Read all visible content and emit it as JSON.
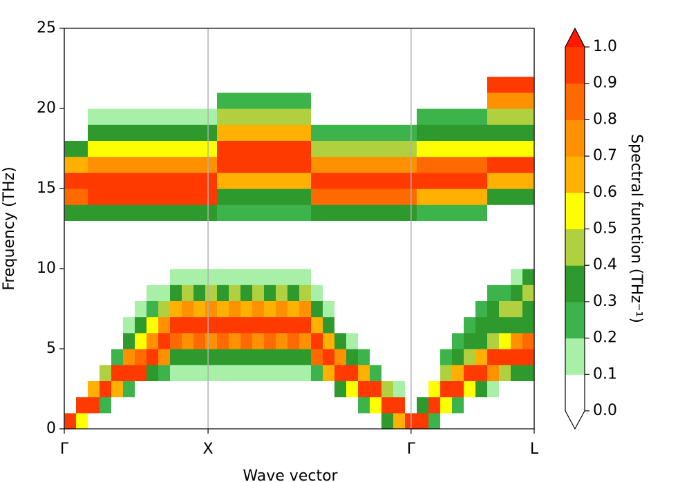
{
  "chart_data": {
    "type": "heatmap",
    "xlabel": "Wave vector",
    "ylabel": "Frequency (THz)",
    "xlim": [
      0,
      1
    ],
    "xticks": [
      {
        "value": 0,
        "label": "Γ"
      },
      {
        "value": 0.306,
        "label": "X"
      },
      {
        "value": 0.738,
        "label": "Γ"
      },
      {
        "value": 1,
        "label": "L"
      }
    ],
    "xgrid": true,
    "ylim": [
      0,
      25
    ],
    "yticks": [
      0,
      5,
      10,
      15,
      20,
      25
    ],
    "z": [
      [
        0.9,
        0,
        0,
        0,
        0,
        0,
        0,
        0,
        0,
        0,
        0,
        0,
        0,
        0.3,
        0.8,
        0.9,
        0.6,
        0.3,
        0,
        0,
        0,
        0,
        0,
        0,
        0
      ],
      [
        0.5,
        0.9,
        0,
        0,
        0,
        0,
        0,
        0,
        0,
        0,
        0,
        0,
        0,
        0.3,
        0.8,
        0.9,
        0.6,
        0.3,
        0,
        0,
        0,
        0,
        0,
        0,
        0
      ],
      [
        0,
        0.9,
        0.6,
        0,
        0,
        0,
        0,
        0,
        0,
        0,
        0,
        0,
        0,
        0.3,
        0.9,
        0.9,
        0.7,
        0.5,
        0.3,
        0.1,
        0,
        0,
        0,
        0,
        0
      ],
      [
        0,
        0.2,
        0.9,
        0.4,
        0,
        0,
        0,
        0,
        0,
        0,
        0,
        0,
        0,
        0.3,
        0.9,
        0.9,
        0.7,
        0.5,
        0.3,
        0.1,
        0,
        0,
        0,
        0,
        0
      ],
      [
        0,
        0,
        0.6,
        0.9,
        0.2,
        0,
        0,
        0,
        0,
        0,
        0,
        0,
        0,
        0.3,
        0.9,
        0.9,
        0.7,
        0.5,
        0.3,
        0.1,
        0,
        0,
        0,
        0,
        0
      ],
      [
        0,
        0,
        0.2,
        0.9,
        0.7,
        0.3,
        0.1,
        0,
        0,
        0,
        0,
        0,
        0,
        0.3,
        0.9,
        0.9,
        0.7,
        0.5,
        0.3,
        0.1,
        0,
        0,
        0,
        0,
        0
      ],
      [
        0,
        0,
        0,
        0.9,
        0.8,
        0.5,
        0.3,
        0.1,
        0,
        0,
        0,
        0,
        0,
        0.3,
        0.9,
        0.9,
        0.7,
        0.5,
        0.3,
        0.1,
        0,
        0,
        0,
        0,
        0
      ],
      [
        0,
        0,
        0,
        0.3,
        0.9,
        0.7,
        0.5,
        0.2,
        0.1,
        0,
        0,
        0,
        0,
        0.3,
        0.9,
        0.9,
        0.7,
        0.5,
        0.3,
        0.1,
        0,
        0,
        0,
        0,
        0
      ],
      [
        0,
        0,
        0,
        0.2,
        0.7,
        0.9,
        0.7,
        0.4,
        0.1,
        0,
        0,
        0,
        0,
        0.3,
        0.9,
        0.9,
        0.7,
        0.5,
        0.3,
        0.1,
        0,
        0,
        0,
        0,
        0
      ],
      [
        0,
        0,
        0,
        0.1,
        0.3,
        0.8,
        0.9,
        0.6,
        0.3,
        0.1,
        0,
        0,
        0,
        0.3,
        0.9,
        0.9,
        0.7,
        0.5,
        0.3,
        0.1,
        0,
        0,
        0,
        0,
        0
      ],
      [
        0,
        0,
        0,
        0.1,
        0.3,
        0.7,
        0.9,
        0.7,
        0.4,
        0.1,
        0,
        0,
        0,
        0.3,
        0.9,
        0.9,
        0.7,
        0.5,
        0.3,
        0.1,
        0,
        0,
        0,
        0,
        0
      ],
      [
        0,
        0,
        0,
        0.1,
        0.3,
        0.8,
        0.9,
        0.6,
        0.3,
        0.1,
        0,
        0,
        0,
        0.3,
        0.9,
        0.9,
        0.7,
        0.5,
        0.3,
        0.1,
        0,
        0,
        0,
        0,
        0
      ],
      [
        0,
        0,
        0,
        0.1,
        0.3,
        0.7,
        0.9,
        0.7,
        0.4,
        0.1,
        0,
        0,
        0,
        0.3,
        0.9,
        0.9,
        0.7,
        0.5,
        0.3,
        0.1,
        0,
        0,
        0,
        0,
        0
      ],
      [
        0,
        0,
        0,
        0.1,
        0.3,
        0.8,
        0.9,
        0.6,
        0.3,
        0.1,
        0,
        0,
        0,
        0.2,
        0.3,
        0.6,
        0.9,
        0.9,
        0.6,
        0.4,
        0.2,
        0,
        0,
        0,
        0
      ],
      [
        0,
        0,
        0,
        0.1,
        0.3,
        0.7,
        0.9,
        0.7,
        0.4,
        0.1,
        0,
        0,
        0,
        0.2,
        0.3,
        0.6,
        0.9,
        0.9,
        0.6,
        0.4,
        0.2,
        0,
        0,
        0,
        0
      ],
      [
        0,
        0,
        0,
        0.1,
        0.3,
        0.8,
        0.9,
        0.6,
        0.3,
        0.1,
        0,
        0,
        0,
        0.2,
        0.3,
        0.6,
        0.9,
        0.9,
        0.6,
        0.4,
        0.2,
        0,
        0,
        0,
        0
      ],
      [
        0,
        0,
        0,
        0.1,
        0.3,
        0.7,
        0.9,
        0.7,
        0.4,
        0.1,
        0,
        0,
        0,
        0.2,
        0.3,
        0.6,
        0.9,
        0.9,
        0.6,
        0.4,
        0.2,
        0,
        0,
        0,
        0
      ],
      [
        0,
        0,
        0,
        0.1,
        0.3,
        0.8,
        0.9,
        0.6,
        0.3,
        0.1,
        0,
        0,
        0,
        0.2,
        0.3,
        0.6,
        0.9,
        0.9,
        0.6,
        0.4,
        0.2,
        0,
        0,
        0,
        0
      ],
      [
        0,
        0,
        0,
        0.1,
        0.3,
        0.7,
        0.9,
        0.7,
        0.4,
        0.1,
        0,
        0,
        0,
        0.2,
        0.3,
        0.6,
        0.9,
        0.9,
        0.6,
        0.4,
        0.2,
        0,
        0,
        0,
        0
      ],
      [
        0,
        0,
        0,
        0.1,
        0.3,
        0.8,
        0.9,
        0.6,
        0.3,
        0.1,
        0,
        0,
        0,
        0.2,
        0.3,
        0.6,
        0.9,
        0.9,
        0.6,
        0.4,
        0.2,
        0,
        0,
        0,
        0
      ],
      [
        0,
        0,
        0,
        0.1,
        0.3,
        0.7,
        0.9,
        0.7,
        0.4,
        0.1,
        0,
        0,
        0,
        0.2,
        0.3,
        0.6,
        0.9,
        0.9,
        0.6,
        0.4,
        0.2,
        0,
        0,
        0,
        0
      ],
      [
        0,
        0,
        0,
        0.2,
        0.8,
        0.9,
        0.6,
        0.3,
        0.1,
        0,
        0,
        0,
        0,
        0.3,
        0.8,
        0.9,
        0.7,
        0.4,
        0.2,
        0,
        0,
        0,
        0,
        0,
        0
      ],
      [
        0,
        0,
        0,
        0.6,
        0.9,
        0.6,
        0.3,
        0.1,
        0,
        0,
        0,
        0,
        0,
        0.3,
        0.8,
        0.9,
        0.7,
        0.4,
        0.2,
        0,
        0,
        0,
        0,
        0,
        0
      ],
      [
        0,
        0,
        0.3,
        0.9,
        0.7,
        0.3,
        0,
        0,
        0,
        0,
        0,
        0,
        0,
        0.3,
        0.8,
        0.9,
        0.7,
        0.4,
        0.2,
        0,
        0,
        0,
        0,
        0,
        0
      ],
      [
        0,
        0,
        0.5,
        0.9,
        0.3,
        0.1,
        0,
        0,
        0,
        0,
        0,
        0,
        0,
        0.3,
        0.8,
        0.9,
        0.7,
        0.4,
        0.2,
        0,
        0,
        0,
        0,
        0,
        0
      ],
      [
        0,
        0.2,
        0.9,
        0.6,
        0.2,
        0,
        0,
        0,
        0,
        0,
        0,
        0,
        0,
        0.3,
        0.8,
        0.9,
        0.7,
        0.4,
        0.2,
        0,
        0,
        0,
        0,
        0,
        0
      ],
      [
        0,
        0.5,
        0.9,
        0.2,
        0,
        0,
        0,
        0,
        0,
        0,
        0,
        0,
        0,
        0.3,
        0.8,
        0.9,
        0.7,
        0.4,
        0.2,
        0,
        0,
        0,
        0,
        0,
        0
      ],
      [
        0.3,
        0.9,
        0.4,
        0,
        0,
        0,
        0,
        0,
        0,
        0,
        0,
        0,
        0,
        0.3,
        0.8,
        0.9,
        0.7,
        0.4,
        0.2,
        0,
        0,
        0,
        0,
        0,
        0
      ],
      [
        0.6,
        0.9,
        0.1,
        0,
        0,
        0,
        0,
        0,
        0,
        0,
        0,
        0,
        0,
        0.3,
        0.8,
        0.9,
        0.7,
        0.4,
        0.2,
        0,
        0,
        0,
        0,
        0,
        0
      ],
      [
        0.9,
        0,
        0,
        0,
        0,
        0,
        0,
        0,
        0,
        0,
        0,
        0,
        0,
        0.3,
        0.8,
        0.9,
        0.7,
        0.4,
        0.2,
        0,
        0,
        0,
        0,
        0,
        0
      ],
      [
        0.9,
        0.3,
        0,
        0,
        0,
        0,
        0,
        0,
        0,
        0,
        0,
        0,
        0,
        0.2,
        0.6,
        0.9,
        0.8,
        0.5,
        0.3,
        0.2,
        0,
        0,
        0,
        0,
        0
      ],
      [
        0.2,
        0.9,
        0.5,
        0,
        0,
        0,
        0,
        0,
        0,
        0,
        0,
        0,
        0,
        0.2,
        0.6,
        0.9,
        0.8,
        0.5,
        0.3,
        0.2,
        0,
        0,
        0,
        0,
        0
      ],
      [
        0,
        0.5,
        0.9,
        0.4,
        0.2,
        0,
        0,
        0,
        0,
        0,
        0,
        0,
        0,
        0.2,
        0.6,
        0.9,
        0.8,
        0.5,
        0.3,
        0.2,
        0,
        0,
        0,
        0,
        0
      ],
      [
        0,
        0.2,
        0.9,
        0.6,
        0.3,
        0.2,
        0,
        0,
        0,
        0,
        0,
        0,
        0,
        0.2,
        0.6,
        0.9,
        0.8,
        0.5,
        0.3,
        0.2,
        0,
        0,
        0,
        0,
        0
      ],
      [
        0,
        0,
        0.5,
        0.9,
        0.4,
        0.3,
        0.2,
        0,
        0,
        0,
        0,
        0,
        0,
        0.2,
        0.6,
        0.9,
        0.8,
        0.5,
        0.3,
        0.2,
        0,
        0,
        0,
        0,
        0
      ],
      [
        0,
        0,
        0.3,
        0.9,
        0.6,
        0.3,
        0.3,
        0.2,
        0,
        0,
        0,
        0,
        0,
        0.2,
        0.6,
        0.9,
        0.8,
        0.5,
        0.3,
        0.2,
        0,
        0,
        0,
        0,
        0
      ],
      [
        0,
        0,
        0.1,
        0.7,
        0.9,
        0.4,
        0.3,
        0.3,
        0.2,
        0,
        0,
        0,
        0,
        0,
        0.3,
        0.6,
        0.9,
        0.5,
        0.3,
        0.4,
        0.7,
        0.9,
        0,
        0,
        0
      ],
      [
        0,
        0,
        0,
        0.4,
        0.9,
        0.5,
        0.3,
        0.4,
        0.2,
        0,
        0,
        0,
        0,
        0,
        0.3,
        0.6,
        0.9,
        0.5,
        0.3,
        0.4,
        0.7,
        0.9,
        0,
        0,
        0
      ],
      [
        0,
        0,
        0,
        0.3,
        0.9,
        0.7,
        0.3,
        0.4,
        0.3,
        0.1,
        0,
        0,
        0,
        0,
        0.3,
        0.6,
        0.9,
        0.5,
        0.3,
        0.4,
        0.7,
        0.9,
        0,
        0,
        0
      ],
      [
        0,
        0,
        0,
        0.3,
        0.9,
        0.8,
        0.3,
        0.3,
        0.4,
        0.3,
        0,
        0,
        0,
        0,
        0.3,
        0.6,
        0.9,
        0.5,
        0.3,
        0.4,
        0.7,
        0.9,
        0,
        0,
        0
      ]
    ],
    "colorbar": {
      "label": "Spectral function (THz⁻¹)",
      "ylim": [
        0,
        1
      ],
      "ticks": [
        {
          "value": 0,
          "label": "0.0"
        },
        0.1,
        0.2,
        0.3,
        0.4,
        0.5,
        0.6,
        0.7,
        0.8,
        0.9,
        {
          "value": 1,
          "label": "1.0"
        }
      ],
      "colors": [
        "#ffffff",
        "#a8f0a8",
        "#3cb44b",
        "#2e9a2e",
        "#b0d040",
        "#ffff00",
        "#ffb000",
        "#ff9000",
        "#ff6a00",
        "#ff3a00"
      ],
      "over_color": "#ff1a00",
      "under_color": "#ffffff"
    }
  }
}
